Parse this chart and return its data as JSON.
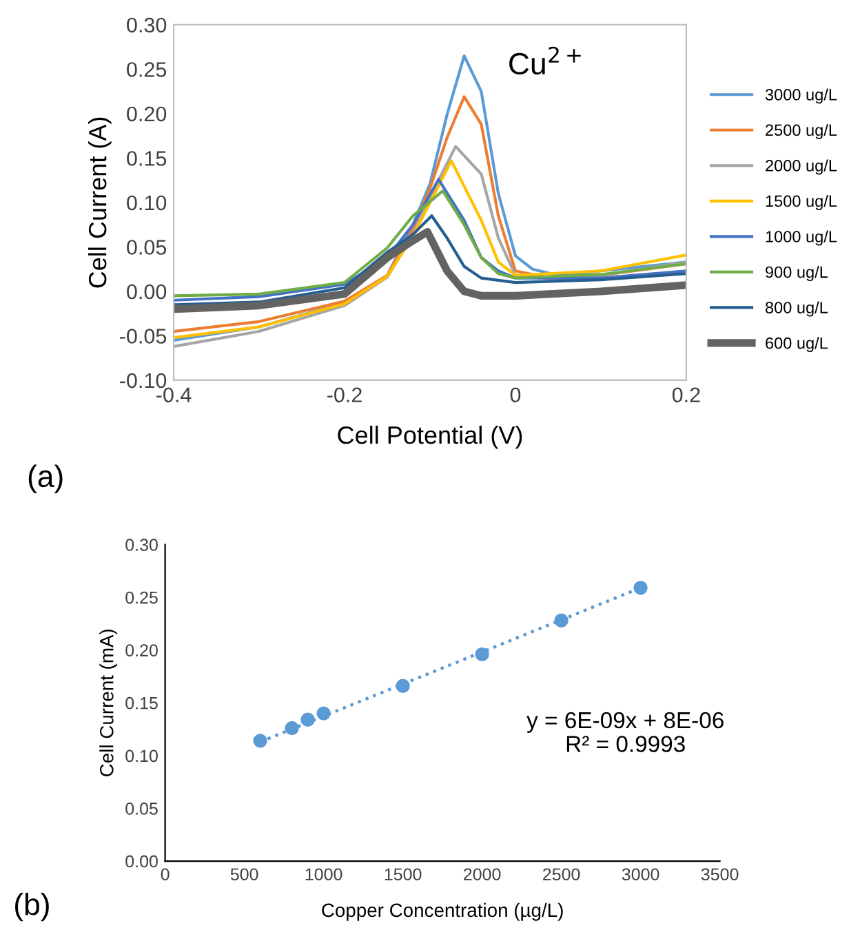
{
  "chart_data": [
    {
      "type": "line",
      "xlabel": "Cell Potential (V)",
      "ylabel": "Cell Current (A)",
      "xlim": [
        -0.4,
        0.2
      ],
      "ylim": [
        -0.1,
        0.3
      ],
      "xticks": [
        -0.4,
        -0.2,
        0,
        0.2
      ],
      "yticks": [
        {
          "value": -0.1,
          "label": "-0.10"
        },
        {
          "value": -0.05,
          "label": "-0.05"
        },
        {
          "value": 0,
          "label": "0.00"
        },
        {
          "value": 0.05,
          "label": "0.05"
        },
        {
          "value": 0.1,
          "label": "0.10"
        },
        {
          "value": 0.15,
          "label": "0.15"
        },
        {
          "value": 0.2,
          "label": "0.20"
        },
        {
          "value": 0.25,
          "label": "0.25"
        },
        {
          "value": 0.3,
          "label": "0.30"
        }
      ],
      "grid": false,
      "legend": "right",
      "marker": "none",
      "line_style": "solid",
      "annotations": [
        "Cu$^{2+}$",
        "(a)"
      ],
      "series": [
        {
          "name": "3000 ug/L",
          "color": "#5b9bd5",
          "x": [
            -0.4,
            -0.3,
            -0.2,
            -0.15,
            -0.12,
            -0.1,
            -0.08,
            -0.06,
            -0.04,
            -0.02,
            0,
            0.02,
            0.05,
            0.1,
            0.2
          ],
          "values": [
            -0.055,
            -0.04,
            -0.013,
            0.018,
            0.075,
            0.121,
            0.199,
            0.265,
            0.225,
            0.11,
            0.04,
            0.025,
            0.018,
            0.023,
            0.033
          ]
        },
        {
          "name": "2500 ug/L",
          "color": "#ed7d31",
          "x": [
            -0.4,
            -0.3,
            -0.2,
            -0.15,
            -0.12,
            -0.1,
            -0.08,
            -0.06,
            -0.04,
            -0.02,
            0,
            0.05,
            0.1,
            0.2
          ],
          "values": [
            -0.045,
            -0.034,
            -0.011,
            0.018,
            0.07,
            0.116,
            0.173,
            0.219,
            0.188,
            0.085,
            0.023,
            0.013,
            0.018,
            0.031
          ]
        },
        {
          "name": "2000 ug/L",
          "color": "#a5a5a5",
          "x": [
            -0.4,
            -0.3,
            -0.2,
            -0.15,
            -0.12,
            -0.1,
            -0.07,
            -0.04,
            -0.02,
            0,
            0.05,
            0.1,
            0.2
          ],
          "values": [
            -0.062,
            -0.045,
            -0.016,
            0.016,
            0.064,
            0.106,
            0.163,
            0.132,
            0.06,
            0.018,
            0.013,
            0.018,
            0.033
          ]
        },
        {
          "name": "1500 ug/L",
          "color": "#ffc000",
          "x": [
            -0.4,
            -0.3,
            -0.2,
            -0.15,
            -0.12,
            -0.1,
            -0.075,
            -0.04,
            -0.02,
            0,
            0.1,
            0.2
          ],
          "values": [
            -0.052,
            -0.04,
            -0.014,
            0.017,
            0.062,
            0.1,
            0.147,
            0.08,
            0.033,
            0.018,
            0.023,
            0.041
          ]
        },
        {
          "name": "1000 ug/L",
          "color": "#4472c4",
          "x": [
            -0.4,
            -0.3,
            -0.2,
            -0.15,
            -0.12,
            -0.09,
            -0.06,
            -0.04,
            -0.02,
            0,
            0.1,
            0.2
          ],
          "values": [
            -0.01,
            -0.006,
            0.008,
            0.038,
            0.075,
            0.126,
            0.08,
            0.038,
            0.023,
            0.015,
            0.015,
            0.023
          ]
        },
        {
          "name": "900 ug/L",
          "color": "#70ad47",
          "x": [
            -0.4,
            -0.3,
            -0.2,
            -0.15,
            -0.12,
            -0.085,
            -0.06,
            -0.04,
            -0.02,
            0,
            0.1,
            0.2
          ],
          "values": [
            -0.005,
            -0.003,
            0.01,
            0.049,
            0.085,
            0.113,
            0.075,
            0.038,
            0.02,
            0.015,
            0.019,
            0.031
          ]
        },
        {
          "name": "800 ug/L",
          "color": "#255e91",
          "x": [
            -0.4,
            -0.3,
            -0.2,
            -0.15,
            -0.12,
            -0.098,
            -0.08,
            -0.06,
            -0.04,
            0,
            0.1,
            0.2
          ],
          "values": [
            -0.015,
            -0.012,
            0.004,
            0.044,
            0.064,
            0.085,
            0.06,
            0.028,
            0.015,
            0.01,
            0.013,
            0.02
          ]
        },
        {
          "name": "600 ug/L",
          "color": "#636363",
          "x": [
            -0.4,
            -0.3,
            -0.2,
            -0.15,
            -0.12,
            -0.103,
            -0.08,
            -0.06,
            -0.04,
            0,
            0.1,
            0.2
          ],
          "values": [
            -0.02,
            -0.016,
            -0.003,
            0.038,
            0.057,
            0.067,
            0.023,
            0.0,
            -0.005,
            -0.005,
            0.0,
            0.007
          ]
        }
      ]
    },
    {
      "type": "scatter",
      "xlabel": "Copper Concentration (µg/L)",
      "ylabel": "Cell Current (mA)",
      "xlim": [
        0,
        3500
      ],
      "ylim": [
        0,
        0.3
      ],
      "xticks": [
        0,
        500,
        1000,
        1500,
        2000,
        2500,
        3000,
        3500
      ],
      "yticks": [
        {
          "value": 0,
          "label": "0.00"
        },
        {
          "value": 0.05,
          "label": "0.05"
        },
        {
          "value": 0.1,
          "label": "0.10"
        },
        {
          "value": 0.15,
          "label": "0.15"
        },
        {
          "value": 0.2,
          "label": "0.20"
        },
        {
          "value": 0.25,
          "label": "0.25"
        },
        {
          "value": 0.3,
          "label": "0.30"
        }
      ],
      "grid": false,
      "legend": false,
      "marker": "circle",
      "annotations": [
        "y = 6E-09x + 8E-06",
        "R² = 0.9993",
        "(b)"
      ],
      "series": [
        {
          "color": "#5b9bd5",
          "x": [
            600,
            800,
            900,
            1000,
            1500,
            2000,
            2500,
            3000
          ],
          "values": [
            0.114,
            0.126,
            0.134,
            0.14,
            0.166,
            0.196,
            0.228,
            0.259
          ]
        },
        {
          "type": "line",
          "line_style": "dotted",
          "marker": "none",
          "color": "#5b9bd5",
          "x": [
            600,
            3000
          ],
          "values": [
            0.113,
            0.259
          ]
        }
      ]
    }
  ]
}
